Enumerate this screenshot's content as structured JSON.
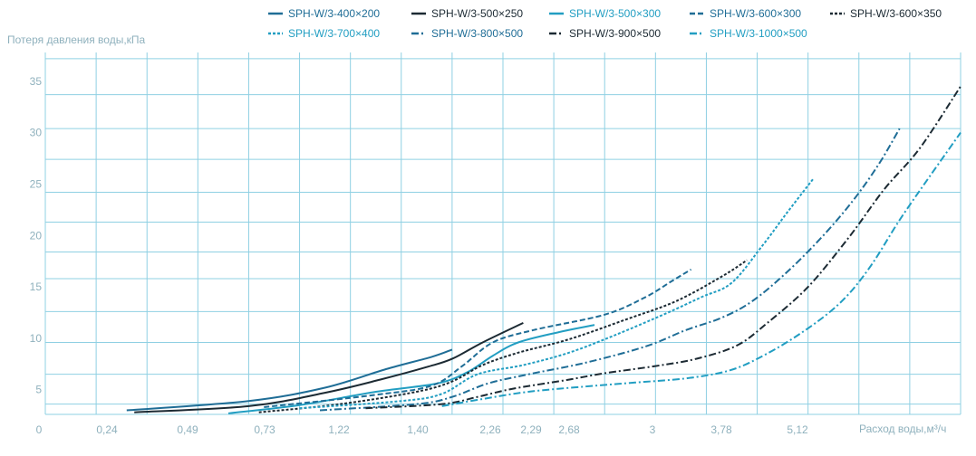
{
  "chart_data": {
    "type": "line",
    "title": "",
    "ylabel": "Потеря давления воды,кПа",
    "xlabel": "Расход воды,м³/ч",
    "x_tick_labels": [
      "0",
      "0,24",
      "0,49",
      "0,73",
      "1,22",
      "1,40",
      "2,26",
      "2,29",
      "2,68",
      "3",
      "3,78",
      "5,12"
    ],
    "y_tick_labels": [
      "5",
      "10",
      "15",
      "20",
      "25",
      "30",
      "35"
    ],
    "x_scale": "categorical-ticks (non-linear, plotted by tick index)",
    "x_range_index": [
      0,
      18
    ],
    "ylim": [
      2.6,
      37.8
    ],
    "grid": true,
    "legend_position": "top",
    "series": [
      {
        "name": "SPH-W/3-400×200",
        "color": "#1f6d96",
        "dash": "solid",
        "points": [
          [
            1.6,
            3.0
          ],
          [
            4.0,
            3.9
          ],
          [
            5.5,
            5.2
          ],
          [
            6.7,
            7.0
          ],
          [
            7.6,
            8.2
          ],
          [
            8.0,
            8.9
          ]
        ]
      },
      {
        "name": "SPH-W/3-500×250",
        "color": "#1c2a33",
        "dash": "solid",
        "points": [
          [
            1.75,
            2.8
          ],
          [
            4.0,
            3.4
          ],
          [
            5.5,
            4.7
          ],
          [
            6.6,
            6.0
          ],
          [
            7.5,
            7.2
          ],
          [
            8.0,
            8.0
          ],
          [
            8.6,
            9.6
          ],
          [
            9.4,
            11.5
          ]
        ]
      },
      {
        "name": "SPH-W/3-500×300",
        "color": "#229ec2",
        "dash": "solid",
        "points": [
          [
            3.6,
            2.7
          ],
          [
            5.0,
            3.5
          ],
          [
            6.5,
            4.8
          ],
          [
            7.7,
            5.6
          ],
          [
            8.3,
            6.7
          ],
          [
            8.8,
            8.3
          ],
          [
            9.3,
            9.6
          ],
          [
            10.1,
            10.6
          ],
          [
            10.8,
            11.3
          ]
        ]
      },
      {
        "name": "SPH-W/3-600×300",
        "color": "#1f6d96",
        "dash": "6,3",
        "points": [
          [
            4.3,
            3.3
          ],
          [
            6.5,
            4.5
          ],
          [
            7.6,
            5.4
          ],
          [
            8.2,
            7.3
          ],
          [
            8.8,
            9.6
          ],
          [
            9.6,
            10.8
          ],
          [
            11.0,
            12.3
          ],
          [
            11.8,
            14.0
          ],
          [
            12.3,
            15.5
          ],
          [
            12.7,
            16.7
          ]
        ]
      },
      {
        "name": "SPH-W/3-600×350",
        "color": "#1c2a33",
        "dash": "3,2",
        "points": [
          [
            4.2,
            2.8
          ],
          [
            5.8,
            3.6
          ],
          [
            7.3,
            4.8
          ],
          [
            8.0,
            5.8
          ],
          [
            8.6,
            7.4
          ],
          [
            9.3,
            8.6
          ],
          [
            10.3,
            9.9
          ],
          [
            11.4,
            11.8
          ],
          [
            12.4,
            13.6
          ],
          [
            13.3,
            16.0
          ],
          [
            13.8,
            17.6
          ]
        ]
      },
      {
        "name": "SPH-W/3-700×400",
        "color": "#229ec2",
        "dash": "3,2",
        "points": [
          [
            5.0,
            3.2
          ],
          [
            7.0,
            3.9
          ],
          [
            7.8,
            4.6
          ],
          [
            8.5,
            6.5
          ],
          [
            9.4,
            7.4
          ],
          [
            10.3,
            8.6
          ],
          [
            11.2,
            10.3
          ],
          [
            12.2,
            12.4
          ],
          [
            12.9,
            14.0
          ],
          [
            13.5,
            15.4
          ],
          [
            14.1,
            19.0
          ],
          [
            14.6,
            22.3
          ],
          [
            15.1,
            25.5
          ]
        ]
      },
      {
        "name": "SPH-W/3-800×500",
        "color": "#1f6d96",
        "dash": "8,3,2,3",
        "points": [
          [
            5.4,
            3.0
          ],
          [
            7.3,
            3.6
          ],
          [
            8.0,
            4.3
          ],
          [
            8.7,
            5.6
          ],
          [
            9.5,
            6.5
          ],
          [
            10.6,
            7.6
          ],
          [
            11.8,
            9.2
          ],
          [
            12.6,
            10.8
          ],
          [
            13.3,
            12.0
          ],
          [
            13.9,
            13.6
          ],
          [
            14.6,
            16.5
          ],
          [
            15.3,
            20.0
          ],
          [
            15.9,
            23.5
          ],
          [
            16.4,
            27.0
          ],
          [
            16.8,
            30.4
          ]
        ]
      },
      {
        "name": "SPH-W/3-900×500",
        "color": "#1c2a33",
        "dash": "8,3,2,3",
        "points": [
          [
            6.3,
            3.2
          ],
          [
            7.8,
            3.6
          ],
          [
            8.5,
            4.3
          ],
          [
            9.2,
            5.1
          ],
          [
            10.2,
            5.9
          ],
          [
            11.0,
            6.6
          ],
          [
            12.0,
            7.3
          ],
          [
            12.8,
            8.0
          ],
          [
            13.6,
            9.3
          ],
          [
            14.2,
            11.5
          ],
          [
            15.0,
            15.0
          ],
          [
            15.8,
            19.8
          ],
          [
            16.5,
            24.5
          ],
          [
            17.2,
            28.5
          ],
          [
            18.0,
            34.5
          ]
        ]
      },
      {
        "name": "SPH-W/3-1000×500",
        "color": "#229ec2",
        "dash": "8,3,2,3",
        "points": [
          [
            7.8,
            3.4
          ],
          [
            8.6,
            4.1
          ],
          [
            9.5,
            4.8
          ],
          [
            10.6,
            5.3
          ],
          [
            11.6,
            5.7
          ],
          [
            12.6,
            6.1
          ],
          [
            13.4,
            6.8
          ],
          [
            14.0,
            8.0
          ],
          [
            14.8,
            10.3
          ],
          [
            15.6,
            13.3
          ],
          [
            16.2,
            16.8
          ],
          [
            16.8,
            21.5
          ],
          [
            17.4,
            25.8
          ],
          [
            18.0,
            30.0
          ]
        ]
      }
    ]
  }
}
